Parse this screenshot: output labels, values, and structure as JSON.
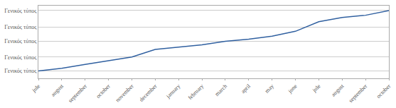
{
  "chart_data": {
    "type": "line",
    "categories": [
      "jule",
      "august",
      "september",
      "october",
      "november",
      "december",
      "january",
      "february",
      "march",
      "april",
      "may",
      "june",
      "jule",
      "august",
      "september",
      "october"
    ],
    "values": [
      1.0,
      1.12,
      1.3,
      1.48,
      1.65,
      2.0,
      2.12,
      2.22,
      2.38,
      2.48,
      2.62,
      2.85,
      3.3,
      3.5,
      3.6,
      3.82
    ],
    "color": "#3060A0",
    "ylim": [
      0.65,
      4.05
    ],
    "yticks": [
      {
        "value": 1.0,
        "label": "Γενικός τύπος"
      },
      {
        "value": 1.65,
        "label": "Γενικός τύπος"
      },
      {
        "value": 2.38,
        "label": "Γενικός τύπος"
      },
      {
        "value": 3.05,
        "label": "Γενικός τύπος"
      },
      {
        "value": 3.82,
        "label": "Γενικός τύπος"
      }
    ],
    "grid": true
  }
}
